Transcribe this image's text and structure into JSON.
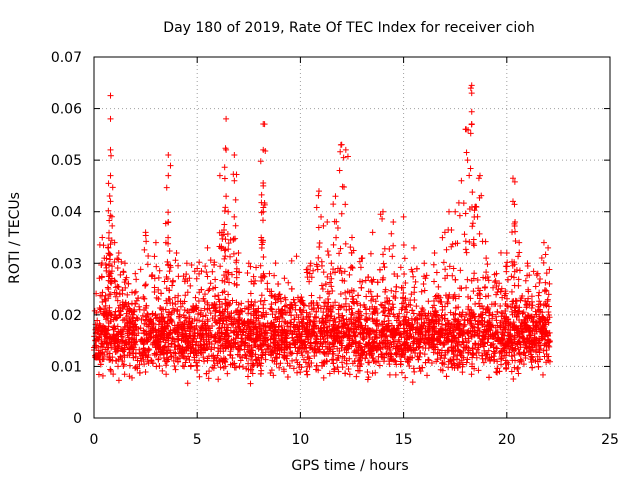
{
  "chart_data": {
    "type": "scatter",
    "title": "Day 180 of 2019, Rate Of TEC Index for receiver cioh",
    "xlabel": "GPS time / hours",
    "ylabel": "ROTI / TECUs",
    "xlim": [
      0,
      25
    ],
    "ylim": [
      0,
      0.07
    ],
    "xticks": [
      "0",
      "5",
      "10",
      "15",
      "20",
      "25"
    ],
    "xtick_values": [
      0,
      5,
      10,
      15,
      20,
      25
    ],
    "yticks": [
      "0",
      "0.01",
      "0.02",
      "0.03",
      "0.04",
      "0.05",
      "0.06",
      "0.07"
    ],
    "ytick_values": [
      0,
      0.01,
      0.02,
      0.03,
      0.04,
      0.05,
      0.06,
      0.07
    ],
    "grid": true,
    "marker": "+",
    "color": "#ff0000",
    "series": [
      {
        "name": "ROTI",
        "x_range": [
          0,
          22.1
        ],
        "typical_band": [
          0.008,
          0.025
        ],
        "points": [
          [
            0.2,
            0.012
          ],
          [
            0.4,
            0.035
          ],
          [
            0.5,
            0.031
          ],
          [
            0.7,
            0.033
          ],
          [
            0.8,
            0.0625
          ],
          [
            0.8,
            0.058
          ],
          [
            0.8,
            0.052
          ],
          [
            0.8,
            0.047
          ],
          [
            0.8,
            0.042
          ],
          [
            1.0,
            0.034
          ],
          [
            1.2,
            0.032
          ],
          [
            1.5,
            0.03
          ],
          [
            2.0,
            0.028
          ],
          [
            2.5,
            0.036
          ],
          [
            3.0,
            0.034
          ],
          [
            3.6,
            0.051
          ],
          [
            3.6,
            0.047
          ],
          [
            3.6,
            0.038
          ],
          [
            4.0,
            0.032
          ],
          [
            4.5,
            0.03
          ],
          [
            5.0,
            0.029
          ],
          [
            5.5,
            0.033
          ],
          [
            6.1,
            0.047
          ],
          [
            6.2,
            0.036
          ],
          [
            6.4,
            0.058
          ],
          [
            6.4,
            0.052
          ],
          [
            6.4,
            0.043
          ],
          [
            6.5,
            0.04
          ],
          [
            6.8,
            0.051
          ],
          [
            6.8,
            0.046
          ],
          [
            7.0,
            0.032
          ],
          [
            7.5,
            0.03
          ],
          [
            8.2,
            0.057
          ],
          [
            8.2,
            0.052
          ],
          [
            8.2,
            0.045
          ],
          [
            8.2,
            0.04
          ],
          [
            8.5,
            0.028
          ],
          [
            9.0,
            0.024
          ],
          [
            9.5,
            0.022
          ],
          [
            10.0,
            0.023
          ],
          [
            10.5,
            0.03
          ],
          [
            10.9,
            0.044
          ],
          [
            11.0,
            0.039
          ],
          [
            11.3,
            0.038
          ],
          [
            11.5,
            0.03
          ],
          [
            11.7,
            0.043
          ],
          [
            11.9,
            0.048
          ],
          [
            12.0,
            0.053
          ],
          [
            12.2,
            0.052
          ],
          [
            12.5,
            0.035
          ],
          [
            13.0,
            0.031
          ],
          [
            13.5,
            0.036
          ],
          [
            14.0,
            0.04
          ],
          [
            14.5,
            0.038
          ],
          [
            15.0,
            0.039
          ],
          [
            15.5,
            0.033
          ],
          [
            16.0,
            0.03
          ],
          [
            16.5,
            0.032
          ],
          [
            17.0,
            0.036
          ],
          [
            17.2,
            0.04
          ],
          [
            17.5,
            0.04
          ],
          [
            17.8,
            0.046
          ],
          [
            18.0,
            0.056
          ],
          [
            18.1,
            0.05
          ],
          [
            18.3,
            0.0645
          ],
          [
            18.3,
            0.063
          ],
          [
            18.3,
            0.057
          ],
          [
            18.5,
            0.041
          ],
          [
            18.7,
            0.047
          ],
          [
            19.0,
            0.031
          ],
          [
            19.5,
            0.028
          ],
          [
            20.0,
            0.032
          ],
          [
            20.3,
            0.0465
          ],
          [
            20.3,
            0.042
          ],
          [
            20.4,
            0.038
          ],
          [
            20.6,
            0.034
          ],
          [
            21.0,
            0.03
          ],
          [
            21.5,
            0.028
          ],
          [
            21.8,
            0.034
          ],
          [
            22.0,
            0.033
          ]
        ]
      }
    ]
  }
}
